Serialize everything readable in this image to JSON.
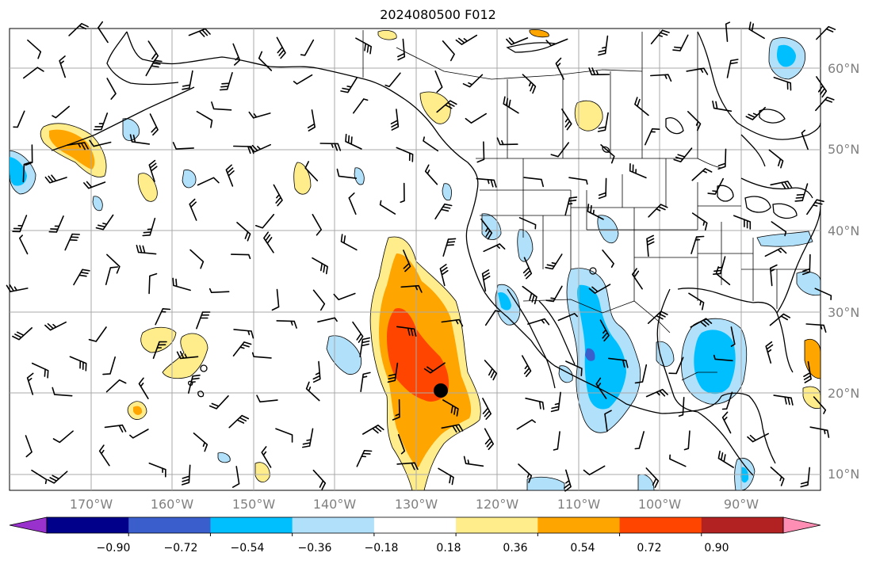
{
  "title": "2024080500 F012",
  "lat_labels": [
    "60°N",
    "50°N",
    "40°N",
    "30°N",
    "20°N",
    "10°N"
  ],
  "lon_labels": [
    "170°W",
    "160°W",
    "150°W",
    "140°W",
    "130°W",
    "120°W",
    "110°W",
    "100°W",
    "90°W"
  ],
  "colorbar": {
    "ticks": [
      "−0.90",
      "−0.72",
      "−0.54",
      "−0.36",
      "−0.18",
      "0.18",
      "0.36",
      "0.54",
      "0.72",
      "0.90"
    ],
    "colors": [
      "#9932cc",
      "#00008b",
      "#3a5fcd",
      "#00bfff",
      "#b0e0fa",
      "#ffffff",
      "#ffec8b",
      "#ffa500",
      "#ff4500",
      "#b22222",
      "#ff8eb4"
    ]
  },
  "colors": {
    "grid": "#a9a9a9",
    "coast": "#000000",
    "label": "#808080"
  }
}
